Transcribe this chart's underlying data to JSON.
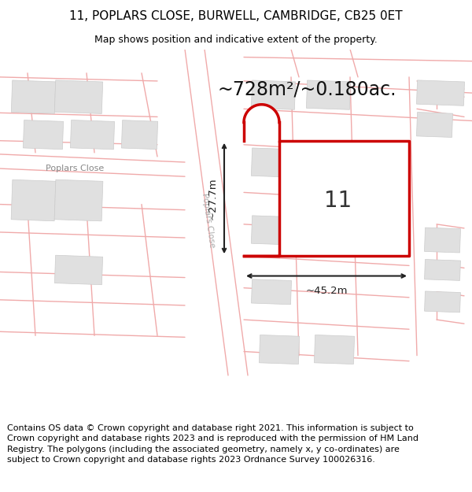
{
  "title_line1": "11, POPLARS CLOSE, BURWELL, CAMBRIDGE, CB25 0ET",
  "title_line2": "Map shows position and indicative extent of the property.",
  "area_label": "~728m²/~0.180ac.",
  "number_label": "11",
  "dim_width": "~45.2m",
  "dim_height": "~27.7m",
  "road_label": "Poplars Close",
  "footer_text": "Contains OS data © Crown copyright and database right 2021. This information is subject to Crown copyright and database rights 2023 and is reproduced with the permission of HM Land Registry. The polygons (including the associated geometry, namely x, y co-ordinates) are subject to Crown copyright and database rights 2023 Ordnance Survey 100026316.",
  "bg_color": "#ffffff",
  "map_bg": "#ffffff",
  "plot_fill": "#ffffff",
  "plot_border": "#cc0000",
  "road_line_color": "#f0aaaa",
  "building_fill": "#e0e0e0",
  "building_edge": "#cccccc",
  "dim_color": "#222222",
  "title_fontsize": 11,
  "subtitle_fontsize": 9,
  "area_fontsize": 17,
  "number_fontsize": 20,
  "footer_fontsize": 8
}
